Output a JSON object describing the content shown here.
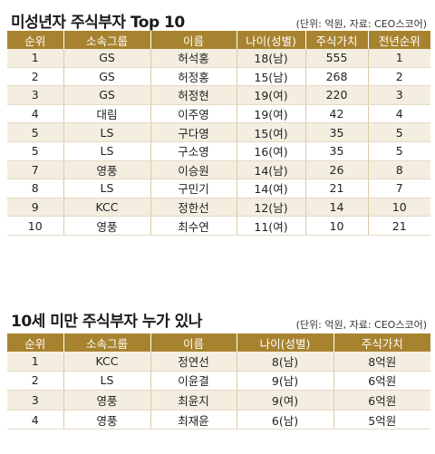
{
  "section1": {
    "title": "미성년자 주식부자 Top 10",
    "unit": "(단위: 억원, 자료: CEO스코어)",
    "headers": [
      "순위",
      "소속그룹",
      "이름",
      "나이(성별)",
      "주식가치",
      "전년순위"
    ],
    "rows": [
      [
        "1",
        "GS",
        "허석홍",
        "18(남)",
        "555",
        "1"
      ],
      [
        "2",
        "GS",
        "허정홍",
        "15(남)",
        "268",
        "2"
      ],
      [
        "3",
        "GS",
        "허정현",
        "19(여)",
        "220",
        "3"
      ],
      [
        "4",
        "대림",
        "이주영",
        "19(여)",
        "42",
        "4"
      ],
      [
        "5",
        "LS",
        "구다영",
        "15(여)",
        "35",
        "5"
      ],
      [
        "5",
        "LS",
        "구소영",
        "16(여)",
        "35",
        "5"
      ],
      [
        "7",
        "영풍",
        "이승원",
        "14(남)",
        "26",
        "8"
      ],
      [
        "8",
        "LS",
        "구민기",
        "14(여)",
        "21",
        "7"
      ],
      [
        "9",
        "KCC",
        "정한선",
        "12(남)",
        "14",
        "10"
      ],
      [
        "10",
        "영풍",
        "최수연",
        "11(여)",
        "10",
        "21"
      ]
    ]
  },
  "section2": {
    "title": "10세 미만 주식부자 누가 있나",
    "unit": "(단위: 억원, 자료: CEO스코어)",
    "headers": [
      "순위",
      "소속그룹",
      "이름",
      "나이(성별)",
      "주식가치"
    ],
    "rows": [
      [
        "1",
        "KCC",
        "정연선",
        "8(남)",
        "8억원"
      ],
      [
        "2",
        "LS",
        "이윤결",
        "9(남)",
        "6억원"
      ],
      [
        "3",
        "영풍",
        "최윤지",
        "9(여)",
        "6억원"
      ],
      [
        "4",
        "영풍",
        "최재윤",
        "6(남)",
        "5억원"
      ]
    ]
  }
}
